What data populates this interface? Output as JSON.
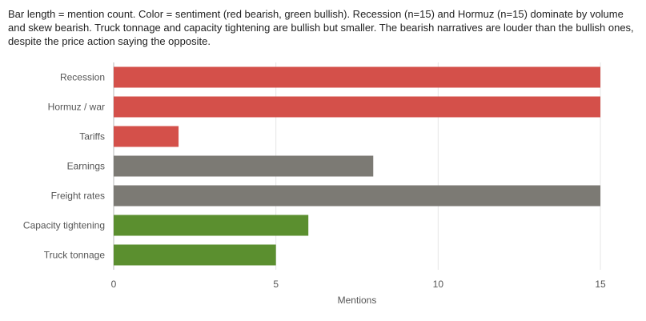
{
  "caption": "Bar length = mention count. Color = sentiment (red bearish, green bullish). Recession (n=15) and Hormuz (n=15) dominate by volume and skew bearish. Truck tonnage and capacity tightening are bullish but smaller. The bearish narratives are louder than the bullish ones, despite the price action saying the opposite.",
  "colors": {
    "bearish": "#d4504a",
    "neutral": "#7c7a74",
    "bullish": "#5b8f2f",
    "grid": "#e6e6e6",
    "axis": "#bbbbbb"
  },
  "chart_data": {
    "type": "bar",
    "orientation": "horizontal",
    "categories": [
      "Recession",
      "Hormuz / war",
      "Tariffs",
      "Earnings",
      "Freight rates",
      "Capacity tightening",
      "Truck tonnage"
    ],
    "values": [
      15,
      15,
      2,
      8,
      15,
      6,
      5
    ],
    "sentiment": [
      "bearish",
      "bearish",
      "bearish",
      "neutral",
      "neutral",
      "bullish",
      "bullish"
    ],
    "xlabel": "Mentions",
    "ylabel": "",
    "xlim": [
      0,
      15
    ],
    "xticks": [
      "0",
      "5",
      "10",
      "15"
    ],
    "xtick_values": [
      0,
      5,
      10,
      15
    ],
    "grid": true
  }
}
